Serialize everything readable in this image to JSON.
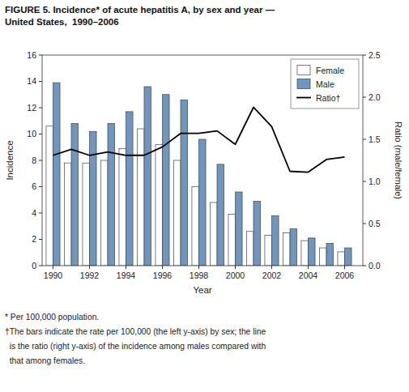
{
  "chart_data": {
    "type": "bar",
    "title": "FIGURE 5. Incidence* of acute hepatitis A, by sex and year —",
    "subtitle": "United States,  1990–2006",
    "annotations": [
      "* Per 100,000 population.",
      "†The bars indicate the rate per 100,000 (the left y-axis) by sex; the line",
      "  is the ratio (right y-axis) of the incidence among males compared with",
      "  that among females."
    ],
    "x": [
      1990,
      1991,
      1992,
      1993,
      1994,
      1995,
      1996,
      1997,
      1998,
      1999,
      2000,
      2001,
      2002,
      2003,
      2004,
      2005,
      2006
    ],
    "xlim": [
      1989.4,
      2007.0
    ],
    "xticks": [
      1990,
      1992,
      1994,
      1996,
      1998,
      2000,
      2002,
      2004,
      2006
    ],
    "xlabel": "Year",
    "ylabel": "Incidence",
    "ylim": [
      0,
      16
    ],
    "yticks": [
      0,
      2,
      4,
      6,
      8,
      10,
      12,
      14,
      16
    ],
    "y2label": "Ratio (male/female)",
    "y2lim": [
      0,
      2.5
    ],
    "y2ticks": [
      {
        "value": 0.0,
        "label": "0.0"
      },
      0.5,
      {
        "value": 1.0,
        "label": "1.0"
      },
      1.5,
      {
        "value": 2.0,
        "label": "2.0"
      },
      2.5
    ],
    "grid": false,
    "legend": "upper right",
    "series": [
      {
        "name": "Female",
        "type": "bar",
        "color": "#ffffff",
        "values": [
          10.6,
          7.8,
          7.8,
          8.0,
          8.9,
          10.4,
          9.2,
          8.0,
          6.0,
          4.8,
          3.9,
          2.6,
          2.3,
          2.5,
          1.9,
          1.35,
          1.05
        ]
      },
      {
        "name": "Male",
        "type": "bar",
        "color": "#7096be",
        "values": [
          13.9,
          10.8,
          10.2,
          10.8,
          11.7,
          13.6,
          13.0,
          12.6,
          9.6,
          7.7,
          5.6,
          4.9,
          3.8,
          2.8,
          2.1,
          1.7,
          1.35
        ]
      },
      {
        "name": "Ratio†",
        "type": "line",
        "axis": "y2",
        "color": "#000000",
        "values": [
          1.31,
          1.38,
          1.31,
          1.35,
          1.31,
          1.31,
          1.41,
          1.57,
          1.57,
          1.6,
          1.44,
          1.88,
          1.65,
          1.12,
          1.11,
          1.26,
          1.29
        ]
      }
    ]
  }
}
